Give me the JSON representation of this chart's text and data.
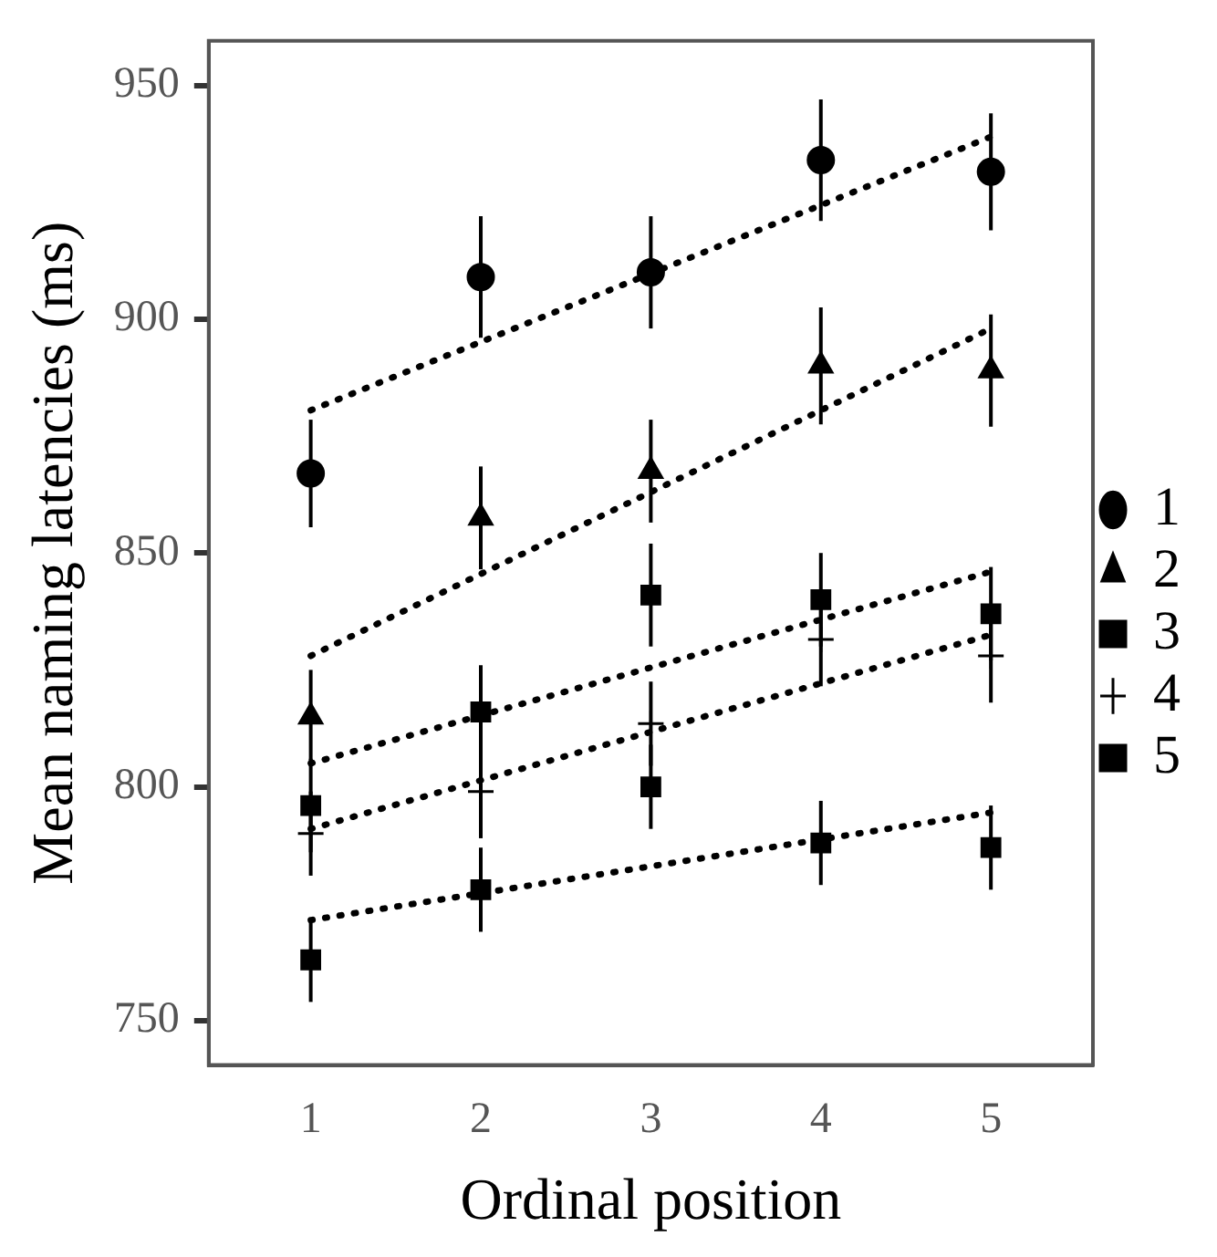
{
  "chart_data": {
    "type": "scatter",
    "xlabel": "Ordinal position",
    "ylabel": "Mean naming latencies (ms)",
    "xlim": [
      0.4,
      5.6
    ],
    "xticks": [
      1,
      2,
      3,
      4,
      5
    ],
    "ylim": [
      740.5,
      959.5
    ],
    "yticks": [
      750,
      800,
      850,
      900,
      950
    ],
    "grid": false,
    "legend": "right",
    "series": [
      {
        "name": "1",
        "color": "#000000",
        "marker": "circle",
        "x": [
          1,
          2,
          3,
          4,
          5
        ],
        "values": [
          867,
          909,
          910,
          934,
          931.5
        ],
        "errors": [
          11.5,
          13,
          12,
          13,
          12.5
        ]
      },
      {
        "name": "2",
        "color": "#000000",
        "marker": "triangle",
        "x": [
          1,
          2,
          3,
          4,
          5
        ],
        "values": [
          815,
          857.5,
          867.5,
          890,
          889
        ],
        "errors": [
          10,
          11,
          11,
          12.5,
          12
        ]
      },
      {
        "name": "3",
        "color": "#000000",
        "marker": "square",
        "x": [
          1,
          2,
          3,
          4,
          5
        ],
        "values": [
          796,
          816,
          841,
          840,
          837
        ],
        "errors": [
          10,
          10,
          11,
          10,
          10
        ]
      },
      {
        "name": "4",
        "color": "#000000",
        "marker": "cross",
        "x": [
          1,
          2,
          3,
          4,
          5
        ],
        "values": [
          790,
          799,
          813.5,
          831.5,
          828
        ],
        "errors": [
          9,
          10,
          9,
          10,
          10
        ]
      },
      {
        "name": "5",
        "color": "#000000",
        "marker": "square",
        "x": [
          1,
          2,
          3,
          4,
          5
        ],
        "values": [
          763,
          778,
          800,
          788,
          787
        ],
        "errors": [
          9,
          9,
          9,
          9,
          9
        ]
      },
      {
        "type": "line",
        "color": "#000000",
        "line_style": "dotted",
        "marker": "none",
        "x": [
          1,
          5
        ],
        "values": [
          880.5,
          939
        ]
      },
      {
        "type": "line",
        "color": "#000000",
        "line_style": "dotted",
        "marker": "none",
        "x": [
          1,
          5
        ],
        "values": [
          828,
          898
        ]
      },
      {
        "type": "line",
        "color": "#000000",
        "line_style": "dotted",
        "marker": "none",
        "x": [
          1,
          5
        ],
        "values": [
          805,
          846
        ]
      },
      {
        "type": "line",
        "color": "#000000",
        "line_style": "dotted",
        "marker": "none",
        "x": [
          1,
          5
        ],
        "values": [
          791,
          832.5
        ]
      },
      {
        "type": "line",
        "color": "#000000",
        "line_style": "dotted",
        "marker": "none",
        "x": [
          1,
          5
        ],
        "values": [
          771.5,
          794.5
        ]
      }
    ]
  }
}
